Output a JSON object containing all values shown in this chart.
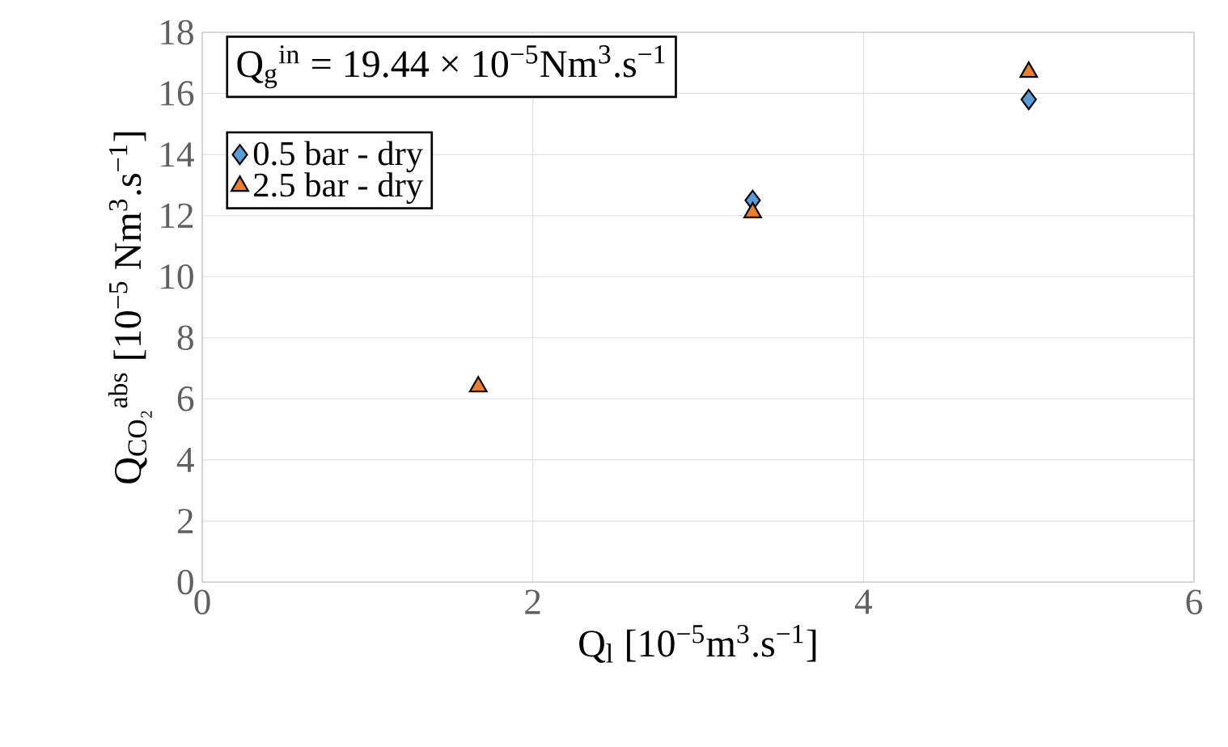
{
  "chart_data": {
    "type": "scatter",
    "xlabel": "Q$_{l}$ [10$^{−5}$m$^{3}$.s$^{−1}$]",
    "ylabel": "Q$_{CO₂}$$^{abs}$ [10$^{−5}$ Nm$^{3}$.s$^{−1}$]",
    "annotations": [
      "Q$_{g}$$^{in}$ = 19.44 × 10$^{−5}$Nm$^{3}$.s$^{−1}$"
    ],
    "x": [
      1.67,
      3.33,
      5.0
    ],
    "series": [
      {
        "name": "0.5 bar - dry",
        "color": "#5b9bd5",
        "marker": "diamond",
        "values": [
          null,
          12.5,
          15.8
        ]
      },
      {
        "name": "2.5 bar - dry",
        "color": "#ed7d31",
        "marker": "triangle",
        "values": [
          6.4,
          12.1,
          16.7
        ]
      }
    ],
    "xlim": [
      0,
      6
    ],
    "xticks": [
      0,
      2,
      4,
      6
    ],
    "ylim": [
      0,
      18
    ],
    "yticks": [
      0,
      2,
      4,
      6,
      8,
      10,
      12,
      14,
      16,
      18
    ],
    "grid": true,
    "legend": "top left"
  }
}
